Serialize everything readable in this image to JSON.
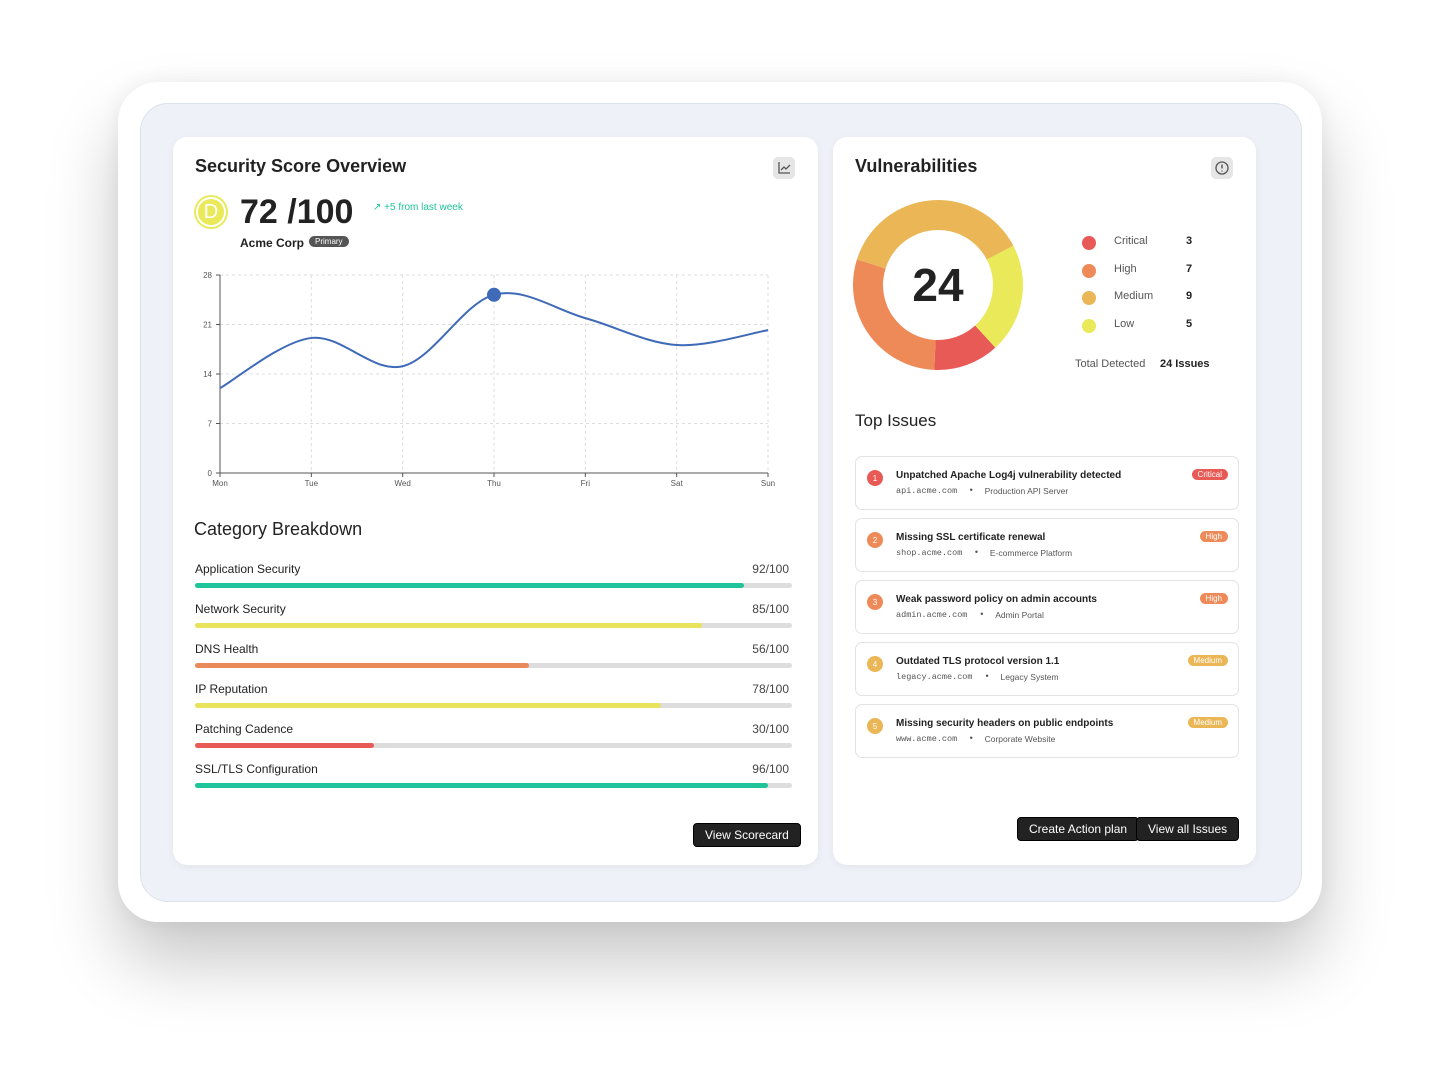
{
  "security": {
    "title": "Security Score Overview",
    "grade": "D",
    "score": "72",
    "score_max": "/100",
    "trend": "+5 from last week",
    "company": "Acme Corp",
    "badge": "Primary",
    "chart": {
      "type": "line",
      "categories": [
        "Mon",
        "Tue",
        "Wed",
        "Thu",
        "Fri",
        "Sat",
        "Sun"
      ],
      "values": [
        12,
        19.1,
        15.1,
        25.2,
        21.9,
        18.1,
        20.2
      ],
      "ylim": [
        0,
        28
      ],
      "yticks": [
        0,
        7,
        14,
        21,
        28
      ],
      "color": "#3f6ab8",
      "grid": true
    },
    "breakdown": {
      "title": "Category Breakdown",
      "xlim": [
        0,
        100
      ],
      "items": [
        {
          "name": "Application Security",
          "value": 92,
          "value_label": "92/100",
          "color": "#1fc49a"
        },
        {
          "name": "Network Security",
          "value": 85,
          "value_label": "85/100",
          "color": "#e8e35a"
        },
        {
          "name": "DNS Health",
          "value": 56,
          "value_label": "56/100",
          "color": "#e98a5a"
        },
        {
          "name": "IP Reputation",
          "value": 78,
          "value_label": "78/100",
          "color": "#e8e35a"
        },
        {
          "name": "Patching Cadence",
          "value": 30,
          "value_label": "30/100",
          "color": "#e85a56"
        },
        {
          "name": "SSL/TLS Configuration",
          "value": 96,
          "value_label": "96/100",
          "color": "#1fc49a"
        }
      ]
    },
    "button": "View Scorecard"
  },
  "vulnerabilities": {
    "title": "Vulnerabilities",
    "total": 24,
    "levels": [
      {
        "name": "Critical",
        "count": 3,
        "color": "#e85a56"
      },
      {
        "name": "High",
        "count": 7,
        "color": "#ee8a58"
      },
      {
        "name": "Medium",
        "count": 9,
        "color": "#ebb656"
      },
      {
        "name": "Low",
        "count": 5,
        "color": "#e9e95a"
      }
    ],
    "total_label": "Total Detected",
    "total_value": "24 Issues",
    "top_title": "Top Issues",
    "issues": [
      {
        "number": "1",
        "title": "Unpatched Apache Log4j vulnerability detected",
        "host": "api.acme.com",
        "system": "Production API Server",
        "severity": "Critical",
        "color": "#e85a56"
      },
      {
        "number": "2",
        "title": "Missing SSL certificate renewal",
        "host": "shop.acme.com",
        "system": "E-commerce Platform",
        "severity": "High",
        "color": "#ee8a58"
      },
      {
        "number": "3",
        "title": "Weak password policy on admin accounts",
        "host": "admin.acme.com",
        "system": "Admin Portal",
        "severity": "High",
        "color": "#ee8a58"
      },
      {
        "number": "4",
        "title": "Outdated TLS protocol version 1.1",
        "host": "legacy.acme.com",
        "system": "Legacy System",
        "severity": "Medium",
        "color": "#ebb656"
      },
      {
        "number": "5",
        "title": "Missing security headers on public endpoints",
        "host": "www.acme.com",
        "system": "Corporate Website",
        "severity": "Medium",
        "color": "#ebb656"
      }
    ],
    "buttons": [
      "Create Action plan",
      "View all Issues"
    ]
  }
}
